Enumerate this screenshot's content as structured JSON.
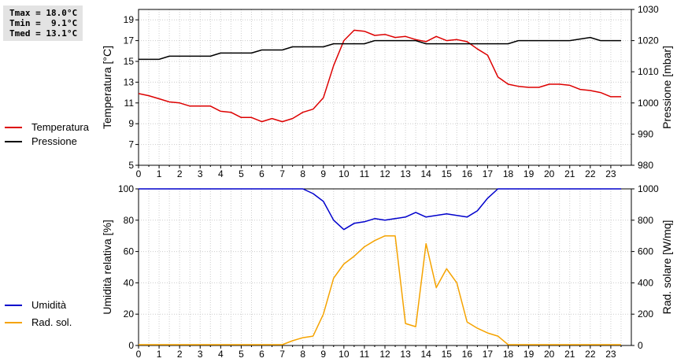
{
  "stats": {
    "tmax": "Tmax = 18.0°C",
    "tmin": "Tmin =  9.1°C",
    "tmed": "Tmed = 13.1°C"
  },
  "colors": {
    "temperatura": "#dd0000",
    "pressione": "#000000",
    "umidita": "#0000cc",
    "rad_sol": "#f5a300",
    "grid": "#cccccc"
  },
  "legend": {
    "temperatura": "Temperatura",
    "pressione": "Pressione",
    "umidita": "Umidità",
    "rad_sol": "Rad. sol."
  },
  "chart_data": [
    {
      "type": "line",
      "x_ticks": [
        "0",
        "1",
        "2",
        "3",
        "4",
        "5",
        "6",
        "7",
        "8",
        "9",
        "10",
        "11",
        "12",
        "13",
        "14",
        "15",
        "16",
        "17",
        "18",
        "19",
        "20",
        "21",
        "22",
        "23"
      ],
      "xlim": [
        0,
        24
      ],
      "ylabel_left": "Temperatura [°C]",
      "ylabel_right": "Pressione [mbar]",
      "ylim_left": [
        5,
        20
      ],
      "yticks_left": [
        "5",
        "7",
        "9",
        "11",
        "13",
        "15",
        "17",
        "19"
      ],
      "ylim_right": [
        980,
        1030
      ],
      "yticks_right": [
        "980",
        "990",
        "1000",
        "1010",
        "1020",
        "1030"
      ],
      "grid": true,
      "series": [
        {
          "name": "Temperatura",
          "axis": "left",
          "x": [
            0,
            0.5,
            1,
            1.5,
            2,
            2.5,
            3,
            3.5,
            4,
            4.5,
            5,
            5.5,
            6,
            6.5,
            7,
            7.5,
            8,
            8.5,
            9,
            9.5,
            10,
            10.5,
            11,
            11.5,
            12,
            12.5,
            13,
            13.5,
            14,
            14.5,
            15,
            15.5,
            16,
            16.5,
            17,
            17.5,
            18,
            18.5,
            19,
            19.5,
            20,
            20.5,
            21,
            21.5,
            22,
            22.5,
            23,
            23.5
          ],
          "values": [
            11.9,
            11.7,
            11.4,
            11.1,
            11.0,
            10.7,
            10.7,
            10.7,
            10.2,
            10.1,
            9.6,
            9.6,
            9.2,
            9.5,
            9.2,
            9.5,
            10.1,
            10.4,
            11.5,
            14.6,
            17.0,
            18.0,
            17.9,
            17.5,
            17.6,
            17.3,
            17.4,
            17.1,
            16.9,
            17.4,
            17.0,
            17.1,
            16.9,
            16.2,
            15.6,
            13.5,
            12.8,
            12.6,
            12.5,
            12.5,
            12.8,
            12.8,
            12.7,
            12.3,
            12.2,
            12.0,
            11.6,
            11.6
          ]
        },
        {
          "name": "Pressione",
          "axis": "right",
          "x": [
            0,
            1,
            1.5,
            3,
            3.5,
            4,
            5,
            5.5,
            6,
            7,
            7.5,
            8,
            9,
            9.5,
            11,
            11.5,
            13,
            13.5,
            14,
            15,
            15.5,
            16,
            18,
            18.5,
            21,
            22,
            22.5,
            23.5
          ],
          "values": [
            1014,
            1014,
            1015,
            1015,
            1015,
            1016,
            1016,
            1016,
            1017,
            1017,
            1018,
            1018,
            1018,
            1019,
            1019,
            1020,
            1020,
            1020,
            1019,
            1019,
            1019,
            1019,
            1019,
            1020,
            1020,
            1021,
            1020,
            1020
          ]
        }
      ]
    },
    {
      "type": "line",
      "x_ticks": [
        "0",
        "1",
        "2",
        "3",
        "4",
        "5",
        "6",
        "7",
        "8",
        "9",
        "10",
        "11",
        "12",
        "13",
        "14",
        "15",
        "16",
        "17",
        "18",
        "19",
        "20",
        "21",
        "22",
        "23"
      ],
      "xlim": [
        0,
        24
      ],
      "ylabel_left": "Umidità relativa [%]",
      "ylabel_right": "Rad. solare [W/mq]",
      "ylim_left": [
        0,
        100
      ],
      "yticks_left": [
        "0",
        "20",
        "40",
        "60",
        "80",
        "100"
      ],
      "ylim_right": [
        0,
        1000
      ],
      "yticks_right": [
        "0",
        "200",
        "400",
        "600",
        "800",
        "1000"
      ],
      "grid": true,
      "series": [
        {
          "name": "Umidità",
          "axis": "left",
          "x": [
            0,
            7.5,
            8,
            8.5,
            9,
            9.5,
            10,
            10.5,
            11,
            11.5,
            12,
            12.5,
            13,
            13.5,
            14,
            14.5,
            15,
            15.5,
            16,
            16.5,
            17,
            17.5,
            23.5
          ],
          "values": [
            100,
            100,
            100,
            97,
            92,
            80,
            74,
            78,
            79,
            81,
            80,
            81,
            82,
            85,
            82,
            83,
            84,
            83,
            82,
            86,
            94,
            100,
            100
          ]
        },
        {
          "name": "Rad. sol.",
          "axis": "right",
          "x": [
            0,
            7,
            7.5,
            8,
            8.5,
            9,
            9.5,
            10,
            10.5,
            11,
            11.5,
            12,
            12.5,
            13,
            13.5,
            14,
            14.5,
            15,
            15.5,
            16,
            16.5,
            17,
            17.5,
            18,
            23.5
          ],
          "values": [
            5,
            5,
            30,
            50,
            60,
            200,
            430,
            520,
            570,
            630,
            670,
            700,
            700,
            140,
            120,
            650,
            370,
            490,
            400,
            150,
            110,
            80,
            60,
            5,
            5
          ]
        }
      ]
    }
  ]
}
